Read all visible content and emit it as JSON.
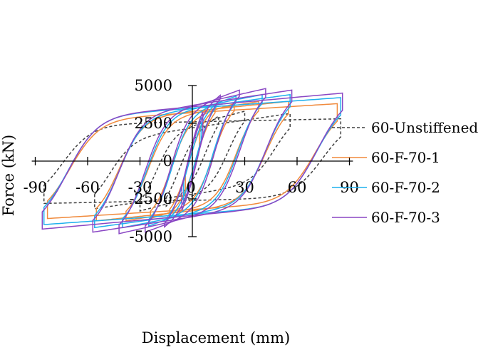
{
  "chart_data": {
    "type": "line",
    "title": "",
    "xlabel": "Displacement (mm)",
    "ylabel": "Force (kN)",
    "xlim": [
      -90,
      90
    ],
    "ylim": [
      -5000,
      5000
    ],
    "x_ticks": [
      "-90",
      "-60",
      "-30",
      "0",
      "30",
      "60",
      "90"
    ],
    "y_ticks": [
      "5000",
      "2500",
      "0",
      "-2500",
      "-5000"
    ],
    "grid": false,
    "legend_position": "right",
    "series": [
      {
        "name": "60-Unstiffened",
        "color": "#404040",
        "dash": "dashed",
        "cycles": [
          {
            "amp": 15,
            "fy": 1800,
            "fmax": 3000
          },
          {
            "amp": 30,
            "fy": 2400,
            "fmax": 3300
          },
          {
            "amp": 56,
            "fy": 2200,
            "fmax": 3150
          },
          {
            "amp": 85,
            "fy": 2600,
            "fmax": 2800
          }
        ]
      },
      {
        "name": "60-F-70-1",
        "color": "#F08A3C",
        "dash": "solid",
        "cycles": [
          {
            "amp": 4,
            "fy": 2100,
            "fmax": 3000
          },
          {
            "amp": 13,
            "fy": 2700,
            "fmax": 3600
          },
          {
            "amp": 24,
            "fy": 3000,
            "fmax": 3800
          },
          {
            "amp": 38,
            "fy": 3200,
            "fmax": 3950
          },
          {
            "amp": 55,
            "fy": 3300,
            "fmax": 3950
          },
          {
            "amp": 83,
            "fy": 3200,
            "fmax": 3800
          }
        ]
      },
      {
        "name": "60-F-70-2",
        "color": "#1FB0EE",
        "dash": "solid",
        "cycles": [
          {
            "amp": 5,
            "fy": 2300,
            "fmax": 3300
          },
          {
            "amp": 14,
            "fy": 3000,
            "fmax": 4000
          },
          {
            "amp": 25,
            "fy": 3300,
            "fmax": 4300
          },
          {
            "amp": 40,
            "fy": 3500,
            "fmax": 4400
          },
          {
            "amp": 56,
            "fy": 3500,
            "fmax": 4400
          },
          {
            "amp": 85,
            "fy": 3500,
            "fmax": 4200
          }
        ]
      },
      {
        "name": "60-F-70-3",
        "color": "#8A47C4",
        "dash": "solid",
        "cycles": [
          {
            "amp": 6,
            "fy": 2500,
            "fmax": 3600
          },
          {
            "amp": 16,
            "fy": 3300,
            "fmax": 4450
          },
          {
            "amp": 27,
            "fy": 3600,
            "fmax": 4700
          },
          {
            "amp": 42,
            "fy": 3700,
            "fmax": 4800
          },
          {
            "amp": 57,
            "fy": 3700,
            "fmax": 4700
          },
          {
            "amp": 86,
            "fy": 3600,
            "fmax": 4500
          }
        ]
      }
    ]
  }
}
